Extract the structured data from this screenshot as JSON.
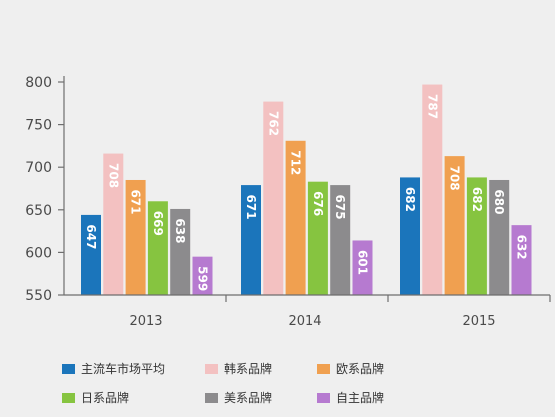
{
  "chart_data": {
    "type": "bar",
    "categories": [
      "2013",
      "2014",
      "2015"
    ],
    "ylim": [
      550,
      800
    ],
    "yticks": [
      550,
      600,
      650,
      700,
      750,
      800
    ],
    "series": [
      {
        "name": "主流车市场平均",
        "color": "#1b75bb",
        "values": [
          647,
          671,
          682
        ]
      },
      {
        "name": "韩系品牌",
        "color": "#f3c1c1",
        "values": [
          708,
          762,
          787
        ]
      },
      {
        "name": "欧系品牌",
        "color": "#f0a050",
        "values": [
          671,
          712,
          708
        ]
      },
      {
        "name": "日系品牌",
        "color": "#86c440",
        "values": [
          669,
          676,
          682
        ]
      },
      {
        "name": "美系品牌",
        "color": "#8c8b8d",
        "values": [
          638,
          675,
          680
        ]
      },
      {
        "name": "自主品牌",
        "color": "#b67ad0",
        "values": [
          599,
          601,
          632
        ]
      }
    ],
    "bar_heights": [
      [
        644,
        679,
        688
      ],
      [
        716,
        777,
        797
      ],
      [
        685,
        731,
        713
      ],
      [
        660,
        683,
        688
      ],
      [
        651,
        679,
        685
      ],
      [
        595,
        614,
        632
      ]
    ],
    "grid": false,
    "legend_position": "bottom"
  }
}
